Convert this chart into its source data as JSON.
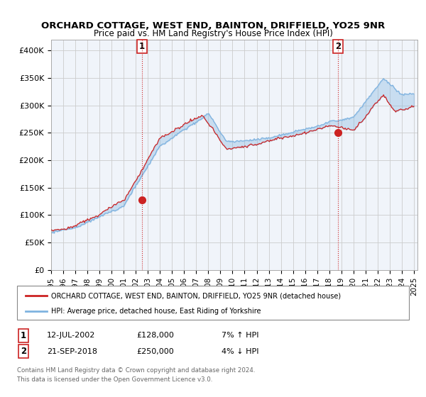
{
  "title": "ORCHARD COTTAGE, WEST END, BAINTON, DRIFFIELD, YO25 9NR",
  "subtitle": "Price paid vs. HM Land Registry's House Price Index (HPI)",
  "legend_line1": "ORCHARD COTTAGE, WEST END, BAINTON, DRIFFIELD, YO25 9NR (detached house)",
  "legend_line2": "HPI: Average price, detached house, East Riding of Yorkshire",
  "annotation1": {
    "num": "1",
    "date": "12-JUL-2002",
    "price": "£128,000",
    "hpi": "7% ↑ HPI",
    "x_year": 2002.53,
    "y_val": 128000
  },
  "annotation2": {
    "num": "2",
    "date": "21-SEP-2018",
    "price": "£250,000",
    "hpi": "4% ↓ HPI",
    "x_year": 2018.72,
    "y_val": 250000
  },
  "footer1": "Contains HM Land Registry data © Crown copyright and database right 2024.",
  "footer2": "This data is licensed under the Open Government Licence v3.0.",
  "hpi_color": "#7fb3e0",
  "sale_color": "#cc2222",
  "vline_color": "#cc2222",
  "fill_color": "#ddeeff",
  "ylim": [
    0,
    420000
  ],
  "yticks": [
    0,
    50000,
    100000,
    150000,
    200000,
    250000,
    300000,
    350000,
    400000
  ],
  "ytick_labels": [
    "£0",
    "£50K",
    "£100K",
    "£150K",
    "£200K",
    "£250K",
    "£300K",
    "£350K",
    "£400K"
  ],
  "xlim_start": 1995.0,
  "xlim_end": 2025.3,
  "bg_color": "#ffffff",
  "grid_color": "#cccccc",
  "plot_bg_color": "#f0f4fa"
}
